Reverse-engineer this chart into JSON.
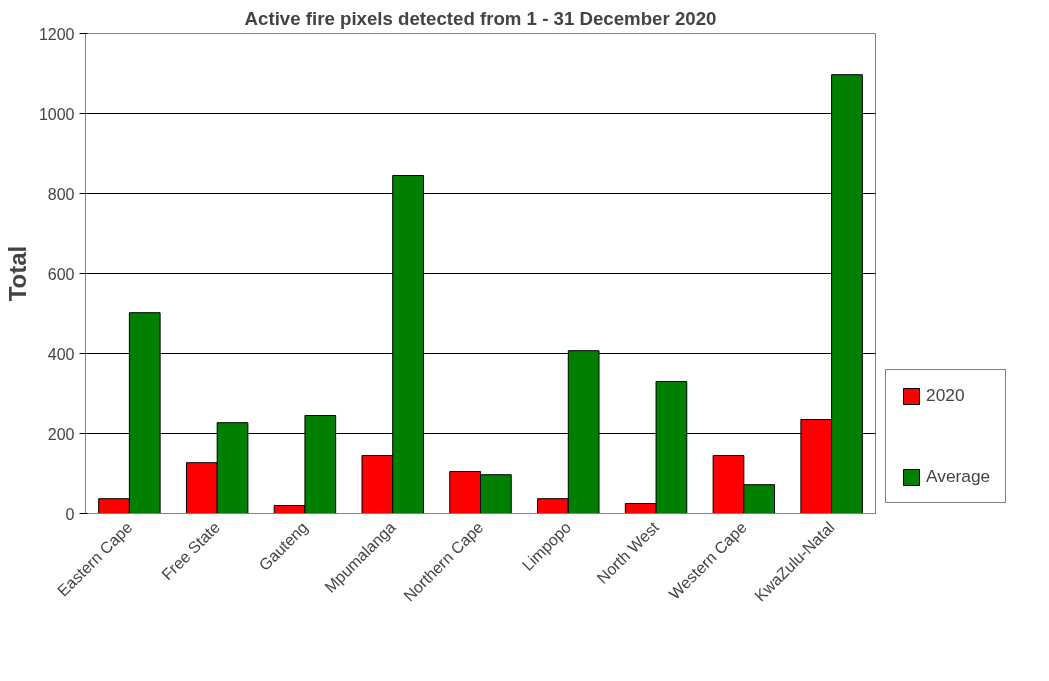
{
  "chart_data": {
    "type": "bar",
    "title": "Active fire pixels detected from 1 - 31 December 2020",
    "ylabel": "Total",
    "categories": [
      "Eastern Cape",
      "Free State",
      "Gauteng",
      "Mpumalanga",
      "Northern Cape",
      "Limpopo",
      "North West",
      "Western Cape",
      "KwaZulu-Natal"
    ],
    "series": [
      {
        "name": "2020",
        "color": "#ff0000",
        "values": [
          37,
          127,
          20,
          145,
          105,
          37,
          25,
          145,
          235
        ]
      },
      {
        "name": "Average",
        "color": "#008000",
        "values": [
          502,
          227,
          245,
          845,
          97,
          407,
          330,
          72,
          1097
        ]
      }
    ],
    "ylim": [
      0,
      1200
    ],
    "yticks": [
      0,
      200,
      400,
      600,
      800,
      1000,
      1200
    ],
    "grid": "y",
    "legend": "right"
  }
}
